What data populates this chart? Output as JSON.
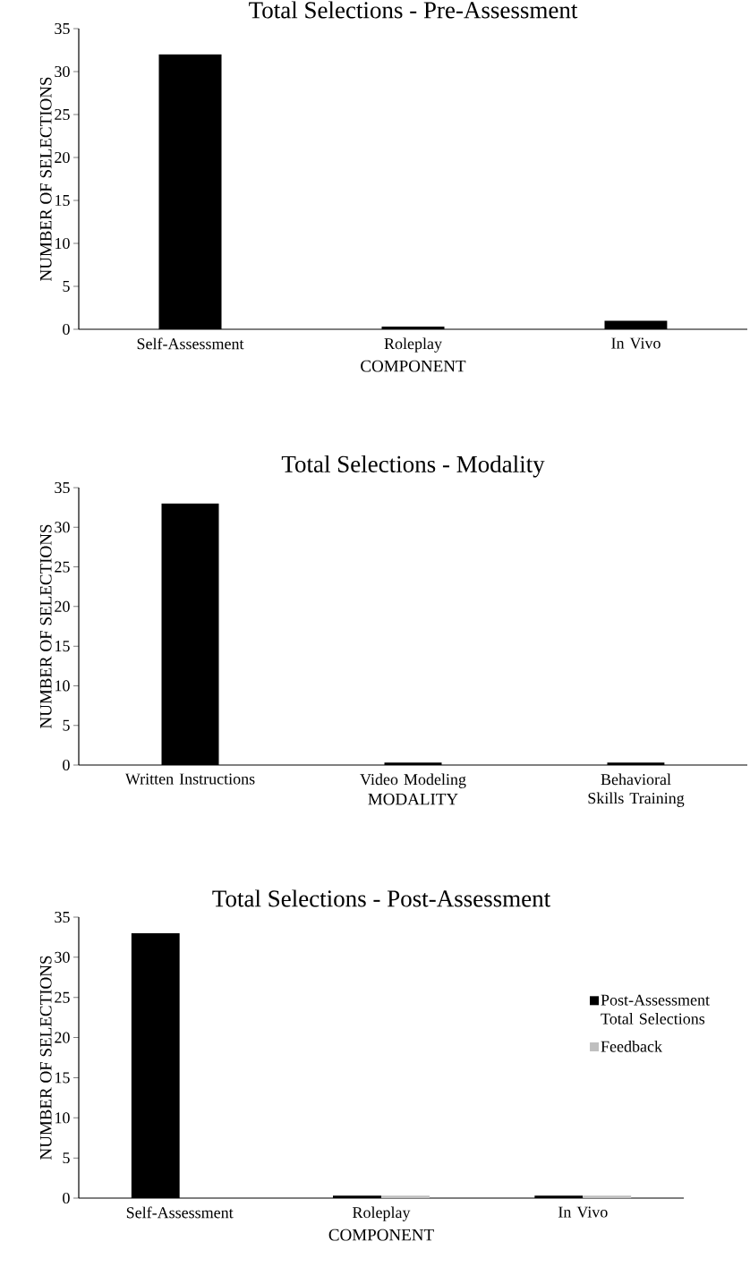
{
  "chart_data": [
    {
      "type": "bar",
      "title": "Total Selections - Pre-Assessment",
      "xlabel": "COMPONENT",
      "ylabel": "NUMBER OF SELECTIONS",
      "categories": [
        "Self-Assessment",
        "Roleplay",
        "In Vivo"
      ],
      "values": [
        32,
        0.3,
        1
      ],
      "color": "#000000",
      "ylim": [
        0,
        35
      ],
      "yticks": [
        0,
        5,
        10,
        15,
        20,
        25,
        30,
        35
      ]
    },
    {
      "type": "bar",
      "title": "Total Selections - Modality",
      "xlabel": "MODALITY",
      "ylabel": "NUMBER OF SELECTIONS",
      "categories": [
        "Written Instructions",
        "Video Modeling",
        "Behavioral Skills Training"
      ],
      "values": [
        33,
        0.3,
        0.3
      ],
      "color": "#000000",
      "ylim": [
        0,
        35
      ],
      "yticks": [
        0,
        5,
        10,
        15,
        20,
        25,
        30,
        35
      ]
    },
    {
      "type": "bar",
      "title": "Total Selections - Post-Assessment",
      "xlabel": "COMPONENT",
      "ylabel": "NUMBER OF SELECTIONS",
      "categories": [
        "Self-Assessment",
        "Roleplay",
        "In Vivo"
      ],
      "series": [
        {
          "name": "Post-Assessment Total Selections",
          "color": "#000000",
          "values": [
            33,
            0.3,
            0.3
          ]
        },
        {
          "name": "Feedback",
          "color": "#bfbfbf",
          "values": [
            null,
            0.3,
            0.3
          ]
        }
      ],
      "ylim": [
        0,
        35
      ],
      "yticks": [
        0,
        5,
        10,
        15,
        20,
        25,
        30,
        35
      ],
      "legend": "right"
    }
  ]
}
